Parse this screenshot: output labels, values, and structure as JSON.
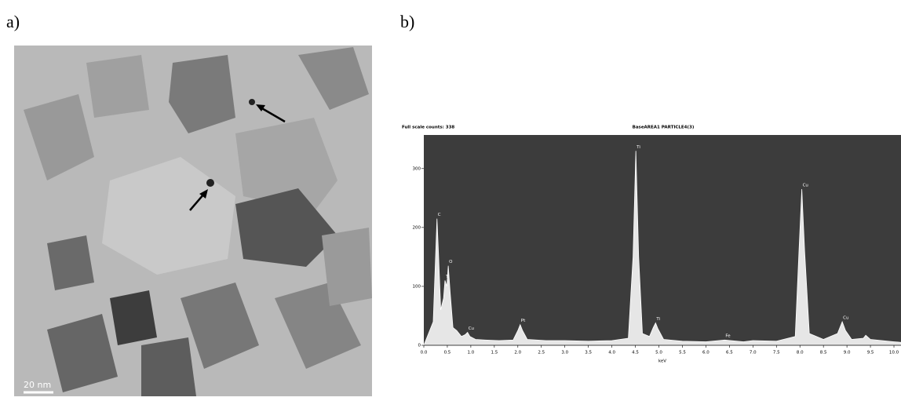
{
  "panel_labels": {
    "a": "a)",
    "b": "b)"
  },
  "image": {
    "scale_bar": "20 nm"
  },
  "chart_data": {
    "type": "area",
    "title": "BaseAREA1 PARTICLE4(3)",
    "subtitle": "Full scale counts: 338",
    "x_label": "keV",
    "color": "#e6e6e6",
    "background": "#3c3c3c",
    "x": [
      0.0,
      0.1,
      0.2,
      0.25,
      0.28,
      0.31,
      0.36,
      0.42,
      0.45,
      0.49,
      0.52,
      0.56,
      0.62,
      0.7,
      0.8,
      0.88,
      0.93,
      0.98,
      1.1,
      1.3,
      1.6,
      1.9,
      2.0,
      2.05,
      2.1,
      2.2,
      2.6,
      3.0,
      3.5,
      4.0,
      4.35,
      4.45,
      4.51,
      4.57,
      4.65,
      4.8,
      4.88,
      4.93,
      4.98,
      5.1,
      5.5,
      6.0,
      6.4,
      6.8,
      7.0,
      7.5,
      7.9,
      7.98,
      8.04,
      8.1,
      8.2,
      8.5,
      8.8,
      8.9,
      8.97,
      9.1,
      9.35,
      9.4,
      9.5,
      10.0,
      10.15
    ],
    "values": [
      0,
      20,
      40,
      150,
      215,
      160,
      60,
      80,
      110,
      100,
      135,
      90,
      30,
      25,
      15,
      18,
      22,
      15,
      10,
      9,
      8,
      9,
      25,
      35,
      25,
      10,
      8,
      8,
      7,
      8,
      12,
      150,
      330,
      150,
      20,
      15,
      30,
      38,
      28,
      10,
      7,
      6,
      9,
      6,
      8,
      7,
      15,
      160,
      265,
      160,
      20,
      10,
      20,
      40,
      25,
      10,
      12,
      17,
      10,
      6,
      5
    ],
    "peaks": [
      {
        "label": "C",
        "x": 0.28,
        "y": 215
      },
      {
        "label": "Ti",
        "x": 0.45,
        "y": 110
      },
      {
        "label": "O",
        "x": 0.52,
        "y": 135
      },
      {
        "label": "Cu",
        "x": 0.93,
        "y": 22
      },
      {
        "label": "Pt",
        "x": 2.05,
        "y": 35
      },
      {
        "label": "Ti",
        "x": 4.51,
        "y": 330
      },
      {
        "label": "Ti",
        "x": 4.93,
        "y": 38
      },
      {
        "label": "Fe",
        "x": 6.4,
        "y": 9
      },
      {
        "label": "Cu",
        "x": 8.04,
        "y": 265
      },
      {
        "label": "Cu",
        "x": 8.9,
        "y": 40
      }
    ],
    "xlim": [
      0,
      10.15
    ],
    "ylim": [
      0,
      357
    ],
    "xticks": [
      {
        "value": 0,
        "label": "0.0"
      },
      0.5,
      {
        "value": 1,
        "label": "1.0"
      },
      1.5,
      {
        "value": 2,
        "label": "2.0"
      },
      2.5,
      {
        "value": 3,
        "label": "3.0"
      },
      3.5,
      {
        "value": 4,
        "label": "4.0"
      },
      4.5,
      {
        "value": 5,
        "label": "5.0"
      },
      5.5,
      {
        "value": 6,
        "label": "6.0"
      },
      6.5,
      {
        "value": 7,
        "label": "7.0"
      },
      7.5,
      {
        "value": 8,
        "label": "8.0"
      },
      8.5,
      {
        "value": 9,
        "label": "9.0"
      },
      9.5,
      {
        "value": 10,
        "label": "10.0"
      }
    ],
    "yticks": [
      0,
      100,
      200,
      300
    ]
  }
}
